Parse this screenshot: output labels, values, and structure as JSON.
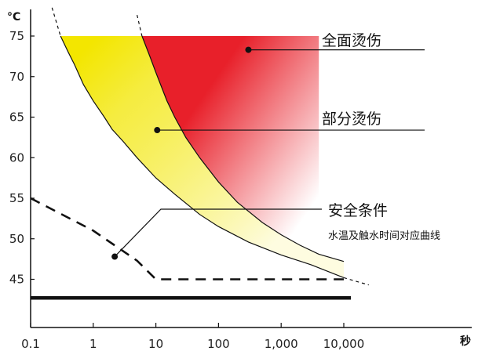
{
  "chart_data": {
    "type": "area",
    "y_unit": "°C",
    "x_unit": "秒",
    "x_scale": "log",
    "y_ticks": [
      75,
      70,
      65,
      60,
      55,
      50,
      45
    ],
    "x_ticks": [
      "0.1",
      "1",
      "10",
      "100",
      "1,000",
      "10,000"
    ],
    "xlim": [
      0.1,
      100000
    ],
    "ylim": [
      40,
      80
    ],
    "regions": [
      {
        "name": "全面烫伤",
        "color": "#e8202a"
      },
      {
        "name": "部分烫伤",
        "color": "#f3e600"
      },
      {
        "name": "安全条件",
        "color": "#ffffff"
      }
    ],
    "curves": {
      "full_burn_threshold": {
        "x": [
          6,
          8,
          10,
          15,
          20,
          30,
          50,
          100,
          200,
          500,
          1000,
          2000,
          4000,
          10000
        ],
        "y": [
          75,
          72.5,
          70.5,
          67,
          65,
          62.5,
          60,
          57,
          54.5,
          52,
          50.5,
          49.2,
          48.1,
          47.2
        ]
      },
      "partial_burn_threshold": {
        "x": [
          0.3,
          0.4,
          0.5,
          0.7,
          1,
          1.5,
          2,
          3,
          5,
          10,
          20,
          50,
          100,
          300,
          1000,
          3000,
          10000
        ],
        "y": [
          75,
          73,
          71.5,
          69,
          67,
          65,
          63.5,
          62,
          60,
          57.5,
          55.5,
          53,
          51.5,
          49.6,
          48,
          46.8,
          45.2
        ]
      },
      "safe_condition": {
        "x": [
          0.1,
          1,
          5,
          10,
          100,
          1000,
          10000
        ],
        "y": [
          55,
          51,
          47.3,
          45,
          45,
          45,
          45
        ]
      }
    },
    "reference_line": {
      "y": 42.7,
      "x": [
        0.1,
        13000
      ]
    },
    "annotations": {
      "full_burn": {
        "text": "全面烫伤",
        "x": 300,
        "y": 73.3
      },
      "partial_burn": {
        "text": "部分烫伤",
        "x": 10.5,
        "y": 63.4
      },
      "safe": {
        "text": "安全条件",
        "x": 2.2,
        "y": 47.8
      },
      "caption": {
        "text": "水温及触水时间对应曲线"
      }
    }
  }
}
